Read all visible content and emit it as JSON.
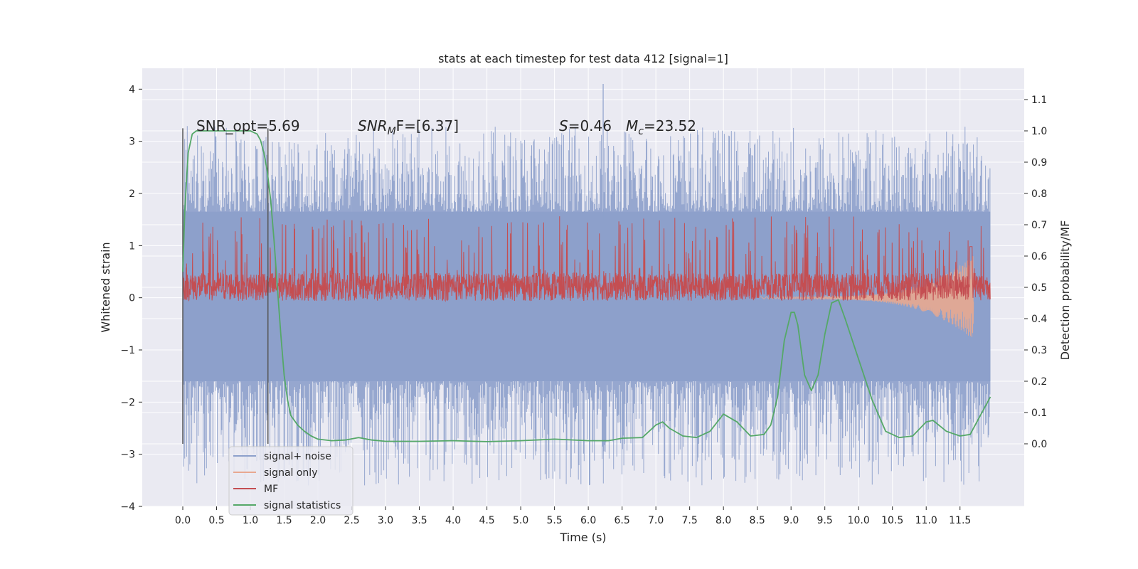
{
  "chart_data": {
    "type": "line",
    "title": "stats at each timestep for test data 412 [signal=1]",
    "xlabel": "Time (s)",
    "ylabel": "Whitened strain",
    "y2label": "Detection probability/MF",
    "xlim": [
      -0.6,
      12.45
    ],
    "ylim": [
      -4.0,
      4.4
    ],
    "y2lim": [
      -0.2,
      1.2
    ],
    "x_ticks": [
      0.0,
      0.5,
      1.0,
      1.5,
      2.0,
      2.5,
      3.0,
      3.5,
      4.0,
      4.5,
      5.0,
      5.5,
      6.0,
      6.5,
      7.0,
      7.5,
      8.0,
      8.5,
      9.0,
      9.5,
      10.0,
      10.5,
      11.0,
      11.5
    ],
    "x_tick_labels": [
      "0.0",
      "0.5",
      "1.0",
      "1.5",
      "2.0",
      "2.5",
      "3.0",
      "3.5",
      "4.0",
      "4.5",
      "5.0",
      "5.5",
      "6.0",
      "6.5",
      "7.0",
      "7.5",
      "8.0",
      "8.5",
      "9.0",
      "9.5",
      "10.0",
      "10.5",
      "11.0",
      "11.5"
    ],
    "y_ticks": [
      -4,
      -3,
      -2,
      -1,
      0,
      1,
      2,
      3,
      4
    ],
    "y_tick_labels": [
      "−4",
      "−3",
      "−2",
      "−1",
      "0",
      "1",
      "2",
      "3",
      "4"
    ],
    "y2_ticks": [
      0.0,
      0.1,
      0.2,
      0.3,
      0.4,
      0.5,
      0.6,
      0.7,
      0.8,
      0.9,
      1.0,
      1.1
    ],
    "y2_tick_labels": [
      "0.0",
      "0.1",
      "0.2",
      "0.3",
      "0.4",
      "0.5",
      "0.6",
      "0.7",
      "0.8",
      "0.9",
      "1.0",
      "1.1"
    ],
    "grid": true,
    "legend_position": "lower-left",
    "annotations": {
      "snr_opt": "SNR_opt=5.69",
      "snr_mf_main": "SNR",
      "snr_mf_sub": "M",
      "snr_mf_rest": "F=[6.37]",
      "s_main": "S",
      "s_rest": "=0.46",
      "mc_main": "M",
      "mc_sub": "c",
      "mc_rest": "=23.52"
    },
    "vlines": {
      "x": [
        0.0,
        1.26
      ],
      "y_range": [
        -2.8,
        3.25
      ],
      "color": "#555555"
    },
    "noise_envelope": {
      "x_range": [
        0.0,
        11.95
      ],
      "band": [
        -1.6,
        1.65
      ],
      "peak_up": [
        2.2,
        3.3
      ],
      "peak_down": [
        -2.0,
        -3.6
      ],
      "tallest_spike": {
        "x": 6.22,
        "y": 4.1
      }
    },
    "series": [
      {
        "name": "signal+ noise",
        "color": "#8da0cb",
        "kind": "noise"
      },
      {
        "name": "signal only",
        "color": "#e8a890",
        "kind": "chirp",
        "x_range": [
          8.5,
          11.7
        ],
        "amplitude_end": 0.8
      },
      {
        "name": "MF",
        "color": "#c44e52",
        "kind": "mf",
        "axis": "y2",
        "baseline": 0.5,
        "amplitude": 0.06,
        "peak": {
          "x": 11.66,
          "value": 0.63
        }
      },
      {
        "name": "signal statistics",
        "color": "#55a868",
        "kind": "line",
        "axis": "y2",
        "x": [
          0.0,
          0.03,
          0.08,
          0.14,
          0.2,
          0.3,
          0.5,
          0.8,
          1.0,
          1.1,
          1.15,
          1.2,
          1.25,
          1.3,
          1.35,
          1.4,
          1.45,
          1.5,
          1.55,
          1.6,
          1.7,
          1.8,
          1.9,
          2.0,
          2.2,
          2.4,
          2.6,
          2.8,
          3.0,
          3.5,
          4.0,
          4.5,
          5.0,
          5.5,
          6.0,
          6.3,
          6.5,
          6.8,
          7.0,
          7.1,
          7.2,
          7.4,
          7.6,
          7.8,
          8.0,
          8.2,
          8.4,
          8.6,
          8.7,
          8.8,
          8.9,
          9.0,
          9.05,
          9.1,
          9.2,
          9.3,
          9.4,
          9.5,
          9.6,
          9.7,
          9.8,
          10.0,
          10.2,
          10.4,
          10.6,
          10.8,
          11.0,
          11.1,
          11.3,
          11.5,
          11.65,
          11.8,
          11.9,
          11.95
        ],
        "y": [
          0.55,
          0.75,
          0.93,
          0.99,
          1.0,
          1.0,
          1.0,
          1.0,
          1.0,
          0.99,
          0.97,
          0.93,
          0.87,
          0.78,
          0.65,
          0.5,
          0.35,
          0.22,
          0.14,
          0.09,
          0.06,
          0.04,
          0.025,
          0.015,
          0.01,
          0.012,
          0.02,
          0.012,
          0.008,
          0.008,
          0.01,
          0.007,
          0.01,
          0.015,
          0.01,
          0.01,
          0.018,
          0.02,
          0.06,
          0.07,
          0.05,
          0.025,
          0.02,
          0.04,
          0.095,
          0.07,
          0.025,
          0.03,
          0.06,
          0.15,
          0.33,
          0.42,
          0.42,
          0.38,
          0.22,
          0.17,
          0.22,
          0.35,
          0.45,
          0.46,
          0.4,
          0.27,
          0.14,
          0.04,
          0.02,
          0.025,
          0.07,
          0.075,
          0.04,
          0.025,
          0.03,
          0.09,
          0.13,
          0.15
        ]
      }
    ]
  }
}
